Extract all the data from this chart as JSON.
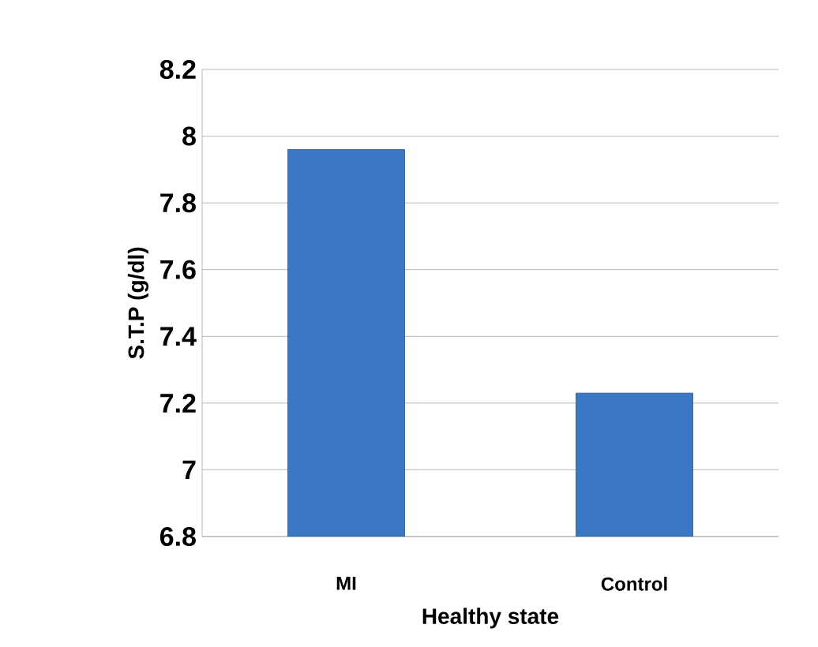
{
  "chart_data": {
    "type": "bar",
    "xlabel": "Healthy state",
    "ylabel": "S.T.P (g/dl)",
    "categories": [
      "MI",
      "Control"
    ],
    "values": [
      7.96,
      7.23
    ],
    "color": "#3b78c4",
    "ylim": [
      6.8,
      8.2
    ],
    "yticks": [
      6.8,
      7,
      7.2,
      7.4,
      7.6,
      7.8,
      8,
      8.2
    ],
    "grid": "y"
  }
}
